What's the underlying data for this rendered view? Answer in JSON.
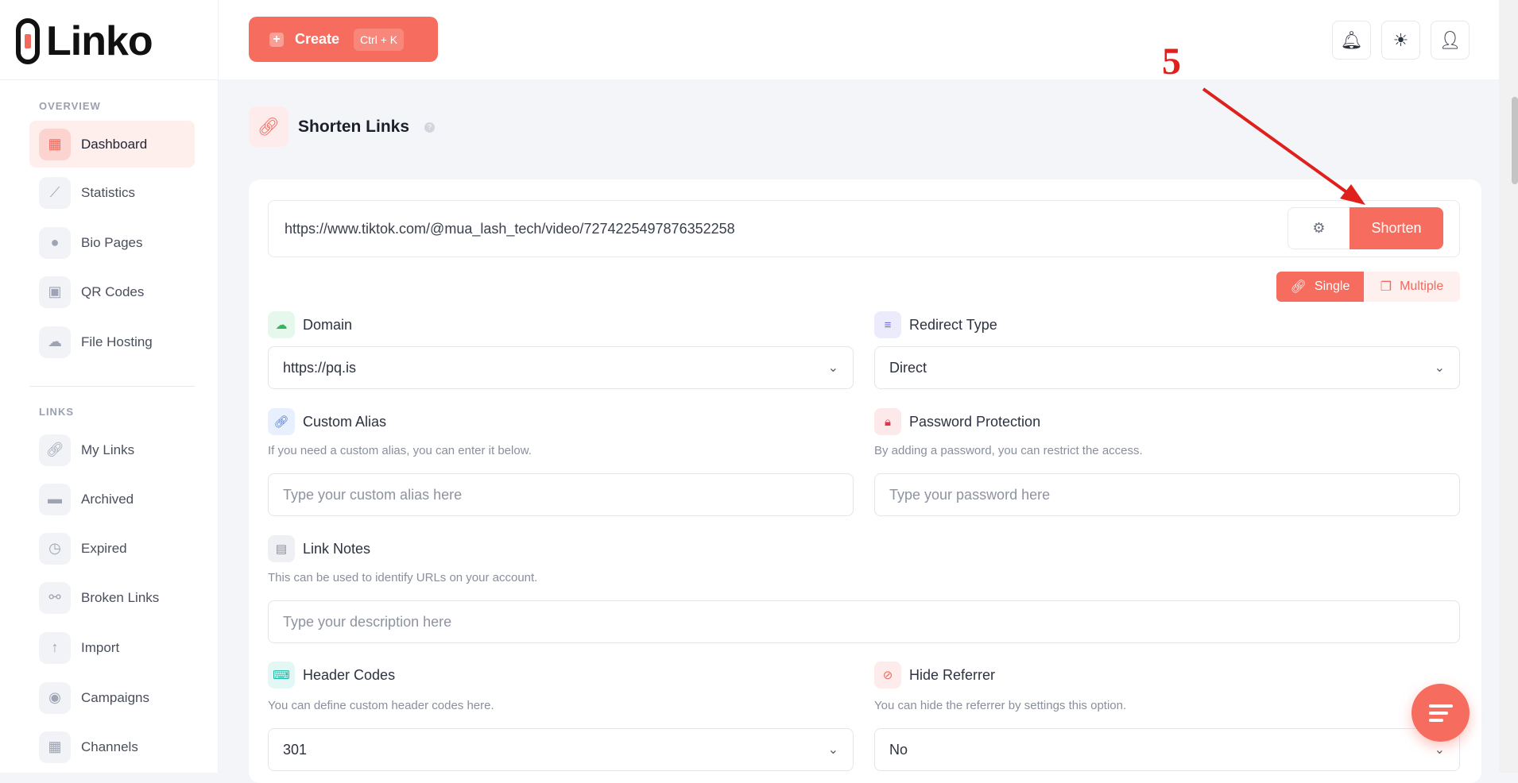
{
  "brand": {
    "name": "Linko"
  },
  "sidebar": {
    "sections": [
      {
        "title": "OVERVIEW",
        "items": [
          {
            "label": "Dashboard",
            "icon": "grid-icon",
            "active": true
          },
          {
            "label": "Statistics",
            "icon": "chart-line-icon"
          },
          {
            "label": "Bio Pages",
            "icon": "users-icon"
          },
          {
            "label": "QR Codes",
            "icon": "qr-code-icon"
          },
          {
            "label": "File Hosting",
            "icon": "cloud-download-icon"
          }
        ]
      },
      {
        "title": "LINKS",
        "items": [
          {
            "label": "My Links",
            "icon": "link-icon"
          },
          {
            "label": "Archived",
            "icon": "archive-icon"
          },
          {
            "label": "Expired",
            "icon": "clock-icon"
          },
          {
            "label": "Broken Links",
            "icon": "broken-link-icon"
          },
          {
            "label": "Import",
            "icon": "import-icon"
          },
          {
            "label": "Campaigns",
            "icon": "target-icon"
          },
          {
            "label": "Channels",
            "icon": "channels-icon"
          }
        ]
      }
    ]
  },
  "topbar": {
    "create_label": "Create",
    "create_shortcut": "Ctrl + K"
  },
  "page": {
    "title": "Shorten Links",
    "help": "?"
  },
  "form": {
    "url_value": "https://www.tiktok.com/@mua_lash_tech/video/7274225497876352258",
    "shorten_label": "Shorten",
    "mode_single": "Single",
    "mode_multiple": "Multiple",
    "domain": {
      "label": "Domain",
      "value": "https://pq.is"
    },
    "redirect": {
      "label": "Redirect Type",
      "value": "Direct"
    },
    "alias": {
      "label": "Custom Alias",
      "hint": "If you need a custom alias, you can enter it below.",
      "placeholder": "Type your custom alias here"
    },
    "password": {
      "label": "Password Protection",
      "hint": "By adding a password, you can restrict the access.",
      "placeholder": "Type your password here"
    },
    "notes": {
      "label": "Link Notes",
      "hint": "This can be used to identify URLs on your account.",
      "placeholder": "Type your description here"
    },
    "header_codes": {
      "label": "Header Codes",
      "hint": "You can define custom header codes here.",
      "value": "301"
    },
    "hide_referrer": {
      "label": "Hide Referrer",
      "hint": "You can hide the referrer by settings this option.",
      "value": "No"
    }
  },
  "annotation": {
    "step": "5",
    "color": "#e0201c"
  },
  "colors": {
    "accent": "#f66d5f"
  }
}
